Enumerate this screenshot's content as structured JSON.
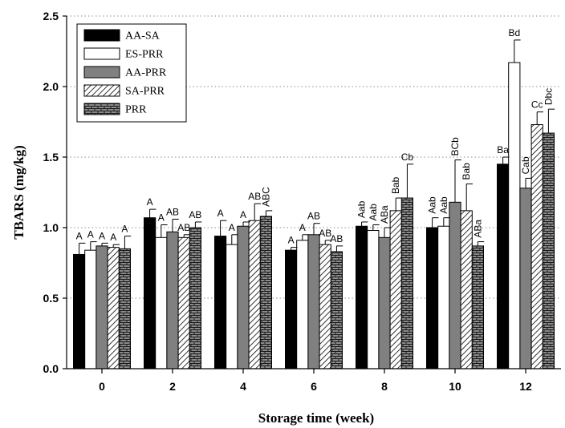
{
  "chart_data": {
    "type": "bar",
    "xlabel": "Storage time (week)",
    "ylabel": "TBARS (mg/kg)",
    "ylim": [
      0,
      2.5
    ],
    "yticks": [
      "0.0",
      "0.5",
      "1.0",
      "1.5",
      "2.0",
      "2.5"
    ],
    "grid": "horizontal dotted",
    "legend_position": "top-left",
    "categories": [
      "0",
      "2",
      "4",
      "6",
      "8",
      "10",
      "12"
    ],
    "series": [
      {
        "name": "AA-SA",
        "pattern": "solid-black",
        "color": "#000000",
        "values": [
          0.81,
          1.07,
          0.94,
          0.84,
          1.01,
          1.0,
          1.45
        ],
        "errors": [
          0.08,
          0.06,
          0.11,
          0.02,
          0.03,
          0.07,
          0.05
        ],
        "labels": [
          "A",
          "A",
          "A",
          "A",
          "Aab",
          "Aab",
          "Ba"
        ]
      },
      {
        "name": "ES-PRR",
        "pattern": "white",
        "color": "#ffffff",
        "values": [
          0.84,
          0.93,
          0.88,
          0.91,
          0.98,
          1.01,
          2.17
        ],
        "errors": [
          0.06,
          0.09,
          0.07,
          0.04,
          0.04,
          0.06,
          0.16
        ],
        "labels": [
          "A",
          "A",
          "A",
          "A",
          "Aab",
          "Aab",
          "Bd"
        ]
      },
      {
        "name": "AA-PRR",
        "pattern": "solid-gray",
        "color": "#808080",
        "values": [
          0.87,
          0.97,
          1.01,
          0.95,
          0.93,
          1.18,
          1.28
        ],
        "errors": [
          0.02,
          0.09,
          0.03,
          0.08,
          0.07,
          0.3,
          0.07
        ],
        "labels": [
          "A",
          "AB",
          "A",
          "AB",
          "ABa",
          "BCb",
          "Cab"
        ]
      },
      {
        "name": "SA-PRR",
        "pattern": "diagonal-hatch",
        "color": "#ffffff",
        "values": [
          0.86,
          0.93,
          1.05,
          0.88,
          1.12,
          1.12,
          1.73
        ],
        "errors": [
          0.02,
          0.02,
          0.12,
          0.03,
          0.09,
          0.19,
          0.09
        ],
        "labels": [
          "A",
          "AB",
          "AB",
          "AB",
          "Bab",
          "Bab",
          "Cc"
        ]
      },
      {
        "name": "PRR",
        "pattern": "brick",
        "color": "#808080",
        "values": [
          0.85,
          1.0,
          1.08,
          0.83,
          1.21,
          0.87,
          1.67
        ],
        "errors": [
          0.09,
          0.04,
          0.04,
          0.04,
          0.24,
          0.03,
          0.17
        ],
        "labels": [
          "A",
          "AB",
          "ABC",
          "AB",
          "Cb",
          "ABa",
          "Dbc"
        ]
      }
    ]
  }
}
